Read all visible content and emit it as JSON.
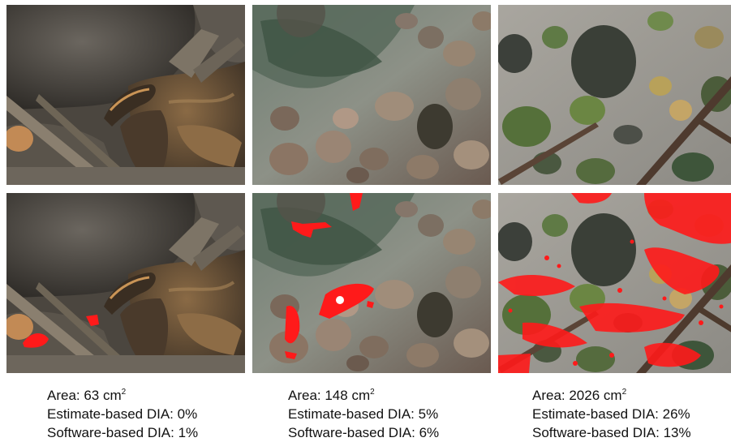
{
  "panels": [
    {
      "area_label": "Area: 63 cm",
      "area_unit_power": "2",
      "estimate_dia": "Estimate-based DIA: 0%",
      "software_dia": "Software-based DIA: 1%",
      "colors": {
        "rock_dark": "#3d3a35",
        "rock_mid": "#6a6258",
        "lichen": "#a2794a",
        "highlight": "#red"
      }
    },
    {
      "area_label": "Area: 148 cm",
      "area_unit_power": "2",
      "estimate_dia": "Estimate-based DIA: 5%",
      "software_dia": "Software-based DIA: 6%",
      "colors": {
        "water": "#7d8a84",
        "algae": "#4f6250",
        "pebble": "#9c8b7c"
      }
    },
    {
      "area_label": "Area: 2026 cm",
      "area_unit_power": "2",
      "estimate_dia": "Estimate-based DIA: 26%",
      "software_dia": "Software-based DIA: 13%",
      "colors": {
        "sand": "#9e9a92",
        "moss": "#5d7a3c",
        "stone": "#3f443c"
      }
    }
  ],
  "highlight_color": "#ff1a1a"
}
